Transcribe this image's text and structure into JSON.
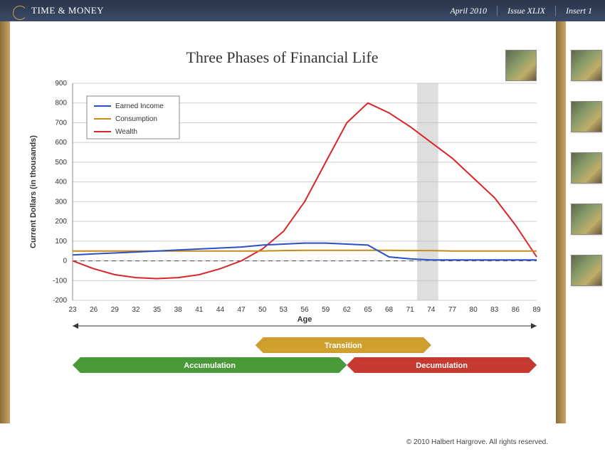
{
  "header": {
    "brand": "TIME & MONEY",
    "date": "April 2010",
    "issue": "Issue XLIX",
    "insert": "Insert 1"
  },
  "chart": {
    "type": "line",
    "title": "Three Phases of Financial Life",
    "ylabel": "Current Dollars (in thousands)",
    "xlabel": "Age",
    "xlim": [
      23,
      89
    ],
    "ylim": [
      -200,
      900
    ],
    "xticks": [
      23,
      26,
      29,
      32,
      35,
      38,
      41,
      44,
      47,
      50,
      53,
      56,
      59,
      62,
      65,
      68,
      71,
      74,
      77,
      80,
      83,
      86,
      89
    ],
    "yticks": [
      -200,
      -100,
      0,
      100,
      200,
      300,
      400,
      500,
      600,
      700,
      800,
      900
    ],
    "grid_color": "#cfcfcf",
    "zero_line_dash": "6,5",
    "background_color": "#ffffff",
    "highlight_band": {
      "x_from": 72,
      "x_to": 75,
      "color": "#bdbdbd",
      "opacity": 0.5
    },
    "series": {
      "earned_income": {
        "label": "Earned Income",
        "color": "#2b4fc4",
        "width": 2,
        "x": [
          23,
          26,
          29,
          32,
          35,
          38,
          41,
          44,
          47,
          50,
          53,
          56,
          59,
          62,
          65,
          68,
          71,
          74,
          77,
          80,
          83,
          86,
          89
        ],
        "y": [
          30,
          35,
          40,
          45,
          50,
          55,
          60,
          65,
          70,
          80,
          85,
          90,
          90,
          85,
          80,
          20,
          10,
          5,
          5,
          5,
          5,
          5,
          5
        ]
      },
      "consumption": {
        "label": "Consumption",
        "color": "#c48a1a",
        "width": 2,
        "x": [
          23,
          26,
          29,
          32,
          35,
          38,
          41,
          44,
          47,
          50,
          53,
          56,
          59,
          62,
          65,
          68,
          71,
          74,
          77,
          80,
          83,
          86,
          89
        ],
        "y": [
          50,
          50,
          50,
          50,
          50,
          50,
          50,
          50,
          50,
          50,
          52,
          53,
          53,
          53,
          53,
          53,
          52,
          52,
          50,
          50,
          50,
          50,
          50
        ]
      },
      "wealth": {
        "label": "Wealth",
        "color": "#d8262a",
        "width": 2,
        "x": [
          23,
          26,
          29,
          32,
          35,
          38,
          41,
          44,
          47,
          50,
          53,
          56,
          59,
          62,
          65,
          68,
          71,
          74,
          77,
          80,
          83,
          86,
          89
        ],
        "y": [
          0,
          -40,
          -70,
          -85,
          -90,
          -85,
          -70,
          -40,
          0,
          60,
          150,
          300,
          500,
          700,
          800,
          750,
          680,
          600,
          520,
          420,
          320,
          180,
          20
        ]
      }
    },
    "legend": {
      "position": "top-left",
      "box_border": "#888888",
      "bg": "#ffffff"
    },
    "phases": [
      {
        "label": "Accumulation",
        "x_from": 23,
        "x_to": 62,
        "color": "#4a9a3a",
        "row": 1
      },
      {
        "label": "Transition",
        "x_from": 49,
        "x_to": 74,
        "color": "#d0a02f",
        "row": 0
      },
      {
        "label": "Decumulation",
        "x_from": 62,
        "x_to": 89,
        "color": "#c73a2f",
        "row": 1
      }
    ],
    "title_fontsize": 22,
    "label_fontsize": 11,
    "tick_fontsize": 10
  },
  "footer": {
    "copyright": "© 2010 Halbert Hargrove.  All rights reserved."
  }
}
